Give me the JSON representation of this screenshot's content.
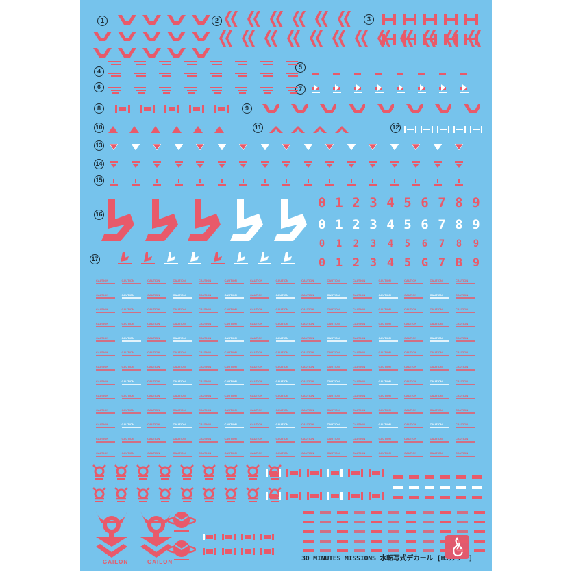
{
  "section_numbers": [
    "1",
    "2",
    "3",
    "4",
    "5",
    "6",
    "7",
    "8",
    "9",
    "10",
    "11",
    "12",
    "13",
    "14",
    "15",
    "16",
    "17"
  ],
  "digit_rows": [
    {
      "digits": [
        "0",
        "1",
        "2",
        "3",
        "4",
        "5",
        "6",
        "7",
        "8",
        "9"
      ],
      "color": "#e85a6a"
    },
    {
      "digits": [
        "0",
        "1",
        "2",
        "3",
        "4",
        "5",
        "6",
        "7",
        "8",
        "9"
      ],
      "color": "#ffffff"
    },
    {
      "digits": [
        "0",
        "1",
        "2",
        "3",
        "4",
        "5",
        "6",
        "7",
        "8",
        "9"
      ],
      "color": "#e85a6a"
    },
    {
      "digits": [
        "0",
        "1",
        "2",
        "3",
        "4",
        "5",
        "G",
        "7",
        "B",
        "9"
      ],
      "color": "#e85a6a"
    }
  ],
  "caution_label": "CAUTION",
  "emblem_label": "GAILON",
  "footer": "30 MINUTES MISSIONS 水転写式デカール [HJカラー]",
  "colors": {
    "sheet": "#76c3ec",
    "decal_red": "#e85a6a",
    "decal_white": "#ffffff",
    "logo_box": "#e05a6e"
  },
  "icons": [
    "chevron-decal",
    "bracket-decal",
    "h-bar-decal",
    "b-logo-decal",
    "emblem-decal",
    "fire-logo-icon"
  ]
}
